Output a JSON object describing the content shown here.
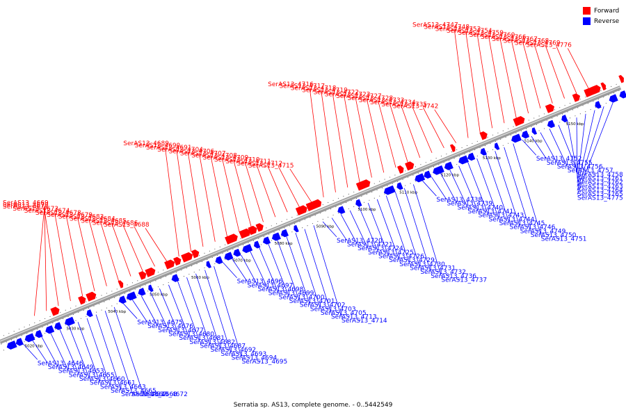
{
  "caption": "Serratia sp. AS13, complete genome. - 0..5442549",
  "legend": [
    {
      "label": "Forward",
      "color": "#ff0000"
    },
    {
      "label": "Reverse",
      "color": "#0000ff"
    }
  ],
  "colors": {
    "forward": "#ff0000",
    "reverse": "#0000ff",
    "axis": "#888888"
  },
  "ticks": [
    "5020 kbp",
    "5030 kbp",
    "5040 kbp",
    "5050 kbp",
    "5060 kbp",
    "5070 kbp",
    "5080 kbp",
    "5090 kbp",
    "5100 kbp",
    "5110 kbp",
    "5120 kbp",
    "5130 kbp",
    "5140 kbp",
    "5150 kbp"
  ],
  "forward_labels": [
    "SerAS13_4669",
    "SerAS13_4670",
    "SerAS13_4671",
    "SerAS13_4673",
    "SerAS13_4674",
    "SerAS13_4678",
    "SerAS13_4679",
    "SerAS13_4683",
    "SerAS13_4684",
    "SerAS13_4685",
    "SerAS13_4686",
    "SerAS13_4688",
    "SerAS13_4689",
    "SerAS13_4690",
    "SerAS13_4691",
    "SerAS13_4704",
    "SerAS13_4706",
    "SerAS13_4707",
    "SerAS13_4708",
    "SerAS13_4709",
    "SerAS13_4710",
    "SerAS13_4711",
    "SerAS13_4712",
    "SerAS13_4715",
    "SerAS13_4716",
    "SerAS13_4717",
    "SerAS13_4718",
    "SerAS13_4719",
    "SerAS13_4722",
    "SerAS13_4723",
    "SerAS13_4727",
    "SerAS13_4728",
    "SerAS13_4733",
    "SerAS13_4734",
    "SerAS13_4735",
    "SerAS13_4742",
    "SerAS13_4747",
    "SerAS13_4748",
    "SerAS13_4753",
    "SerAS13_4754",
    "SerAS13_4759",
    "SerAS13_4760",
    "SerAS13_4766",
    "SerAS13_4767",
    "SerAS13_4768",
    "SerAS13_4769",
    "SerAS13_4776"
  ],
  "reverse_labels": [
    "SerAS13_4646",
    "SerAS13_4649",
    "SerAS13_4653",
    "SerAS13_4655",
    "SerAS13_4660",
    "SerAS13_4661",
    "SerAS13_4663",
    "SerAS13_4665",
    "SerAS13_4667",
    "SerAS13_4668",
    "SerAS13_4672",
    "SerAS13_4675",
    "SerAS13_4676",
    "SerAS13_4677",
    "SerAS13_4680",
    "SerAS13_4681",
    "SerAS13_4682",
    "SerAS13_4687",
    "SerAS13_4692",
    "SerAS13_4693",
    "SerAS13_4694",
    "SerAS13_4695",
    "SerAS13_4696",
    "SerAS13_4697",
    "SerAS13_4698",
    "SerAS13_4699",
    "SerAS13_4700",
    "SerAS13_4701",
    "SerAS13_4702",
    "SerAS13_4703",
    "SerAS13_4705",
    "SerAS13_4713",
    "SerAS13_4714",
    "SerAS13_4720",
    "SerAS13_4721",
    "SerAS13_4724",
    "SerAS13_4725",
    "SerAS13_4726",
    "SerAS13_4729",
    "SerAS13_4730",
    "SerAS13_4731",
    "SerAS13_4732",
    "SerAS13_4736",
    "SerAS13_4737",
    "SerAS13_4738",
    "SerAS13_4739",
    "SerAS13_4740",
    "SerAS13_4741",
    "SerAS13_4743",
    "SerAS13_4744",
    "SerAS13_4745",
    "SerAS13_4746",
    "SerAS13_4749",
    "SerAS13_4750",
    "SerAS13_4751",
    "SerAS13_4752",
    "SerAS13_4755",
    "SerAS13_4756",
    "SerAS13_4757",
    "SerAS13_4758",
    "SerAS13_4761",
    "SerAS13_4762",
    "SerAS13_4763",
    "SerAS13_4764",
    "SerAS13_4765",
    "SerAS13_4775"
  ]
}
